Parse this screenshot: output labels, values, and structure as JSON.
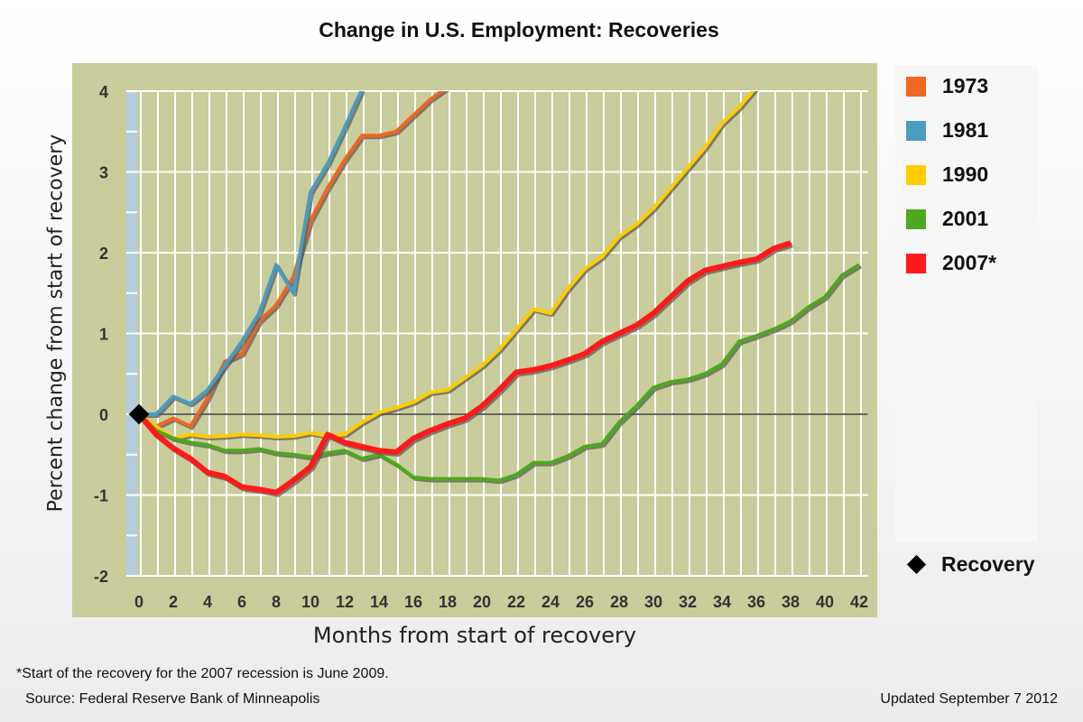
{
  "chart_data": {
    "type": "line",
    "title": "Change in U.S. Employment: Recoveries",
    "xlabel": "Months from start of recovery",
    "ylabel": "Percent change from start of recovery",
    "xlim": [
      0,
      42
    ],
    "ylim": [
      -2,
      4
    ],
    "xticks": [
      0,
      2,
      4,
      6,
      8,
      10,
      12,
      14,
      16,
      18,
      20,
      22,
      24,
      26,
      28,
      30,
      32,
      34,
      36,
      38,
      40,
      42
    ],
    "yticks": [
      -2,
      -1,
      0,
      1,
      2,
      3,
      4
    ],
    "grid": true,
    "legend_placement": "right",
    "series": [
      {
        "name": "1973",
        "color": "#f26522",
        "values": [
          0,
          -0.15,
          -0.05,
          -0.15,
          0.2,
          0.65,
          0.75,
          1.15,
          1.35,
          1.7,
          2.4,
          2.8,
          3.15,
          3.45,
          3.45,
          3.5,
          3.7,
          3.9,
          4.05
        ]
      },
      {
        "name": "1981",
        "color": "#4a9cc0",
        "values": [
          0,
          0,
          0.22,
          0.13,
          0.3,
          0.6,
          0.9,
          1.25,
          1.85,
          1.5,
          2.75,
          3.1,
          3.55,
          4.02
        ]
      },
      {
        "name": "1990",
        "color": "#ffcc00",
        "values": [
          0,
          -0.15,
          -0.3,
          -0.25,
          -0.28,
          -0.27,
          -0.25,
          -0.26,
          -0.28,
          -0.27,
          -0.23,
          -0.27,
          -0.25,
          -0.1,
          0.02,
          0.08,
          0.15,
          0.27,
          0.3,
          0.45,
          0.6,
          0.8,
          1.05,
          1.3,
          1.25,
          1.55,
          1.8,
          1.95,
          2.2,
          2.35,
          2.55,
          2.8,
          3.05,
          3.3,
          3.6,
          3.8,
          4.05
        ]
      },
      {
        "name": "2001",
        "color": "#4ea81e",
        "values": [
          0,
          -0.2,
          -0.3,
          -0.35,
          -0.38,
          -0.45,
          -0.45,
          -0.43,
          -0.48,
          -0.5,
          -0.53,
          -0.48,
          -0.45,
          -0.55,
          -0.5,
          -0.62,
          -0.78,
          -0.8,
          -0.8,
          -0.8,
          -0.8,
          -0.82,
          -0.75,
          -0.6,
          -0.6,
          -0.52,
          -0.4,
          -0.37,
          -0.1,
          0.1,
          0.33,
          0.4,
          0.43,
          0.5,
          0.62,
          0.9,
          0.97,
          1.05,
          1.15,
          1.32,
          1.45,
          1.72,
          1.85
        ]
      },
      {
        "name": "2007*",
        "color": "#ff1a1a",
        "values": [
          0,
          -0.25,
          -0.42,
          -0.55,
          -0.72,
          -0.77,
          -0.9,
          -0.93,
          -0.97,
          -0.82,
          -0.65,
          -0.25,
          -0.35,
          -0.4,
          -0.45,
          -0.47,
          -0.3,
          -0.2,
          -0.12,
          -0.05,
          0.1,
          0.3,
          0.52,
          0.55,
          0.6,
          0.67,
          0.75,
          0.9,
          1.0,
          1.1,
          1.25,
          1.45,
          1.65,
          1.78,
          1.83,
          1.88,
          1.92,
          2.05,
          2.12
        ]
      }
    ],
    "marker": {
      "label": "Recovery",
      "x": 0,
      "y": 0
    }
  },
  "footer": {
    "note": "*Start of the recovery for the 2007 recession is June 2009.",
    "source": "Source: Federal Reserve Bank of Minneapolis",
    "updated": "Updated September 7 2012"
  }
}
